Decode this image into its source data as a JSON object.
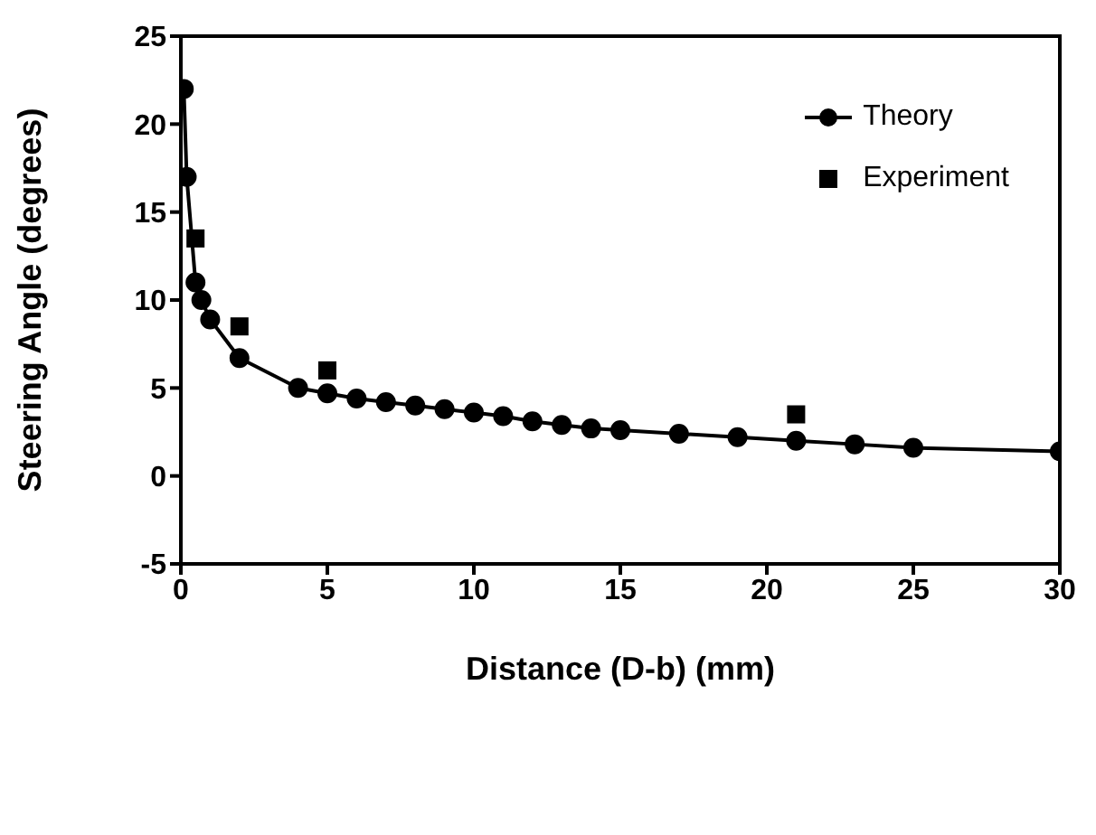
{
  "chart_data": {
    "type": "line",
    "xlabel": "Distance (D-b) (mm)",
    "ylabel": "Steering Angle (degrees)",
    "xlim": [
      0,
      30
    ],
    "xticks": [
      0,
      5,
      10,
      15,
      20,
      25,
      30
    ],
    "ylim": [
      -5,
      25
    ],
    "yticks": [
      -5,
      0,
      5,
      10,
      15,
      20,
      25
    ],
    "grid": false,
    "legend": "top right",
    "series": [
      {
        "name": "Theory",
        "marker": "circle",
        "color": "#000000",
        "x": [
          0.1,
          0.2,
          0.5,
          0.7,
          1,
          2,
          4,
          5,
          6,
          7,
          8,
          9,
          10,
          11,
          12,
          13,
          14,
          15,
          17,
          19,
          21,
          23,
          25,
          30
        ],
        "values": [
          22,
          17,
          11,
          10,
          8.9,
          6.7,
          5,
          4.7,
          4.4,
          4.2,
          4,
          3.8,
          3.6,
          3.4,
          3.1,
          2.9,
          2.7,
          2.6,
          2.4,
          2.2,
          2.0,
          1.8,
          1.6,
          1.4
        ]
      },
      {
        "name": "Experiment",
        "type": "scatter",
        "marker": "square",
        "color": "#000000",
        "x": [
          0.5,
          2,
          5,
          21
        ],
        "values": [
          13.5,
          8.5,
          6,
          3.5
        ]
      }
    ]
  }
}
